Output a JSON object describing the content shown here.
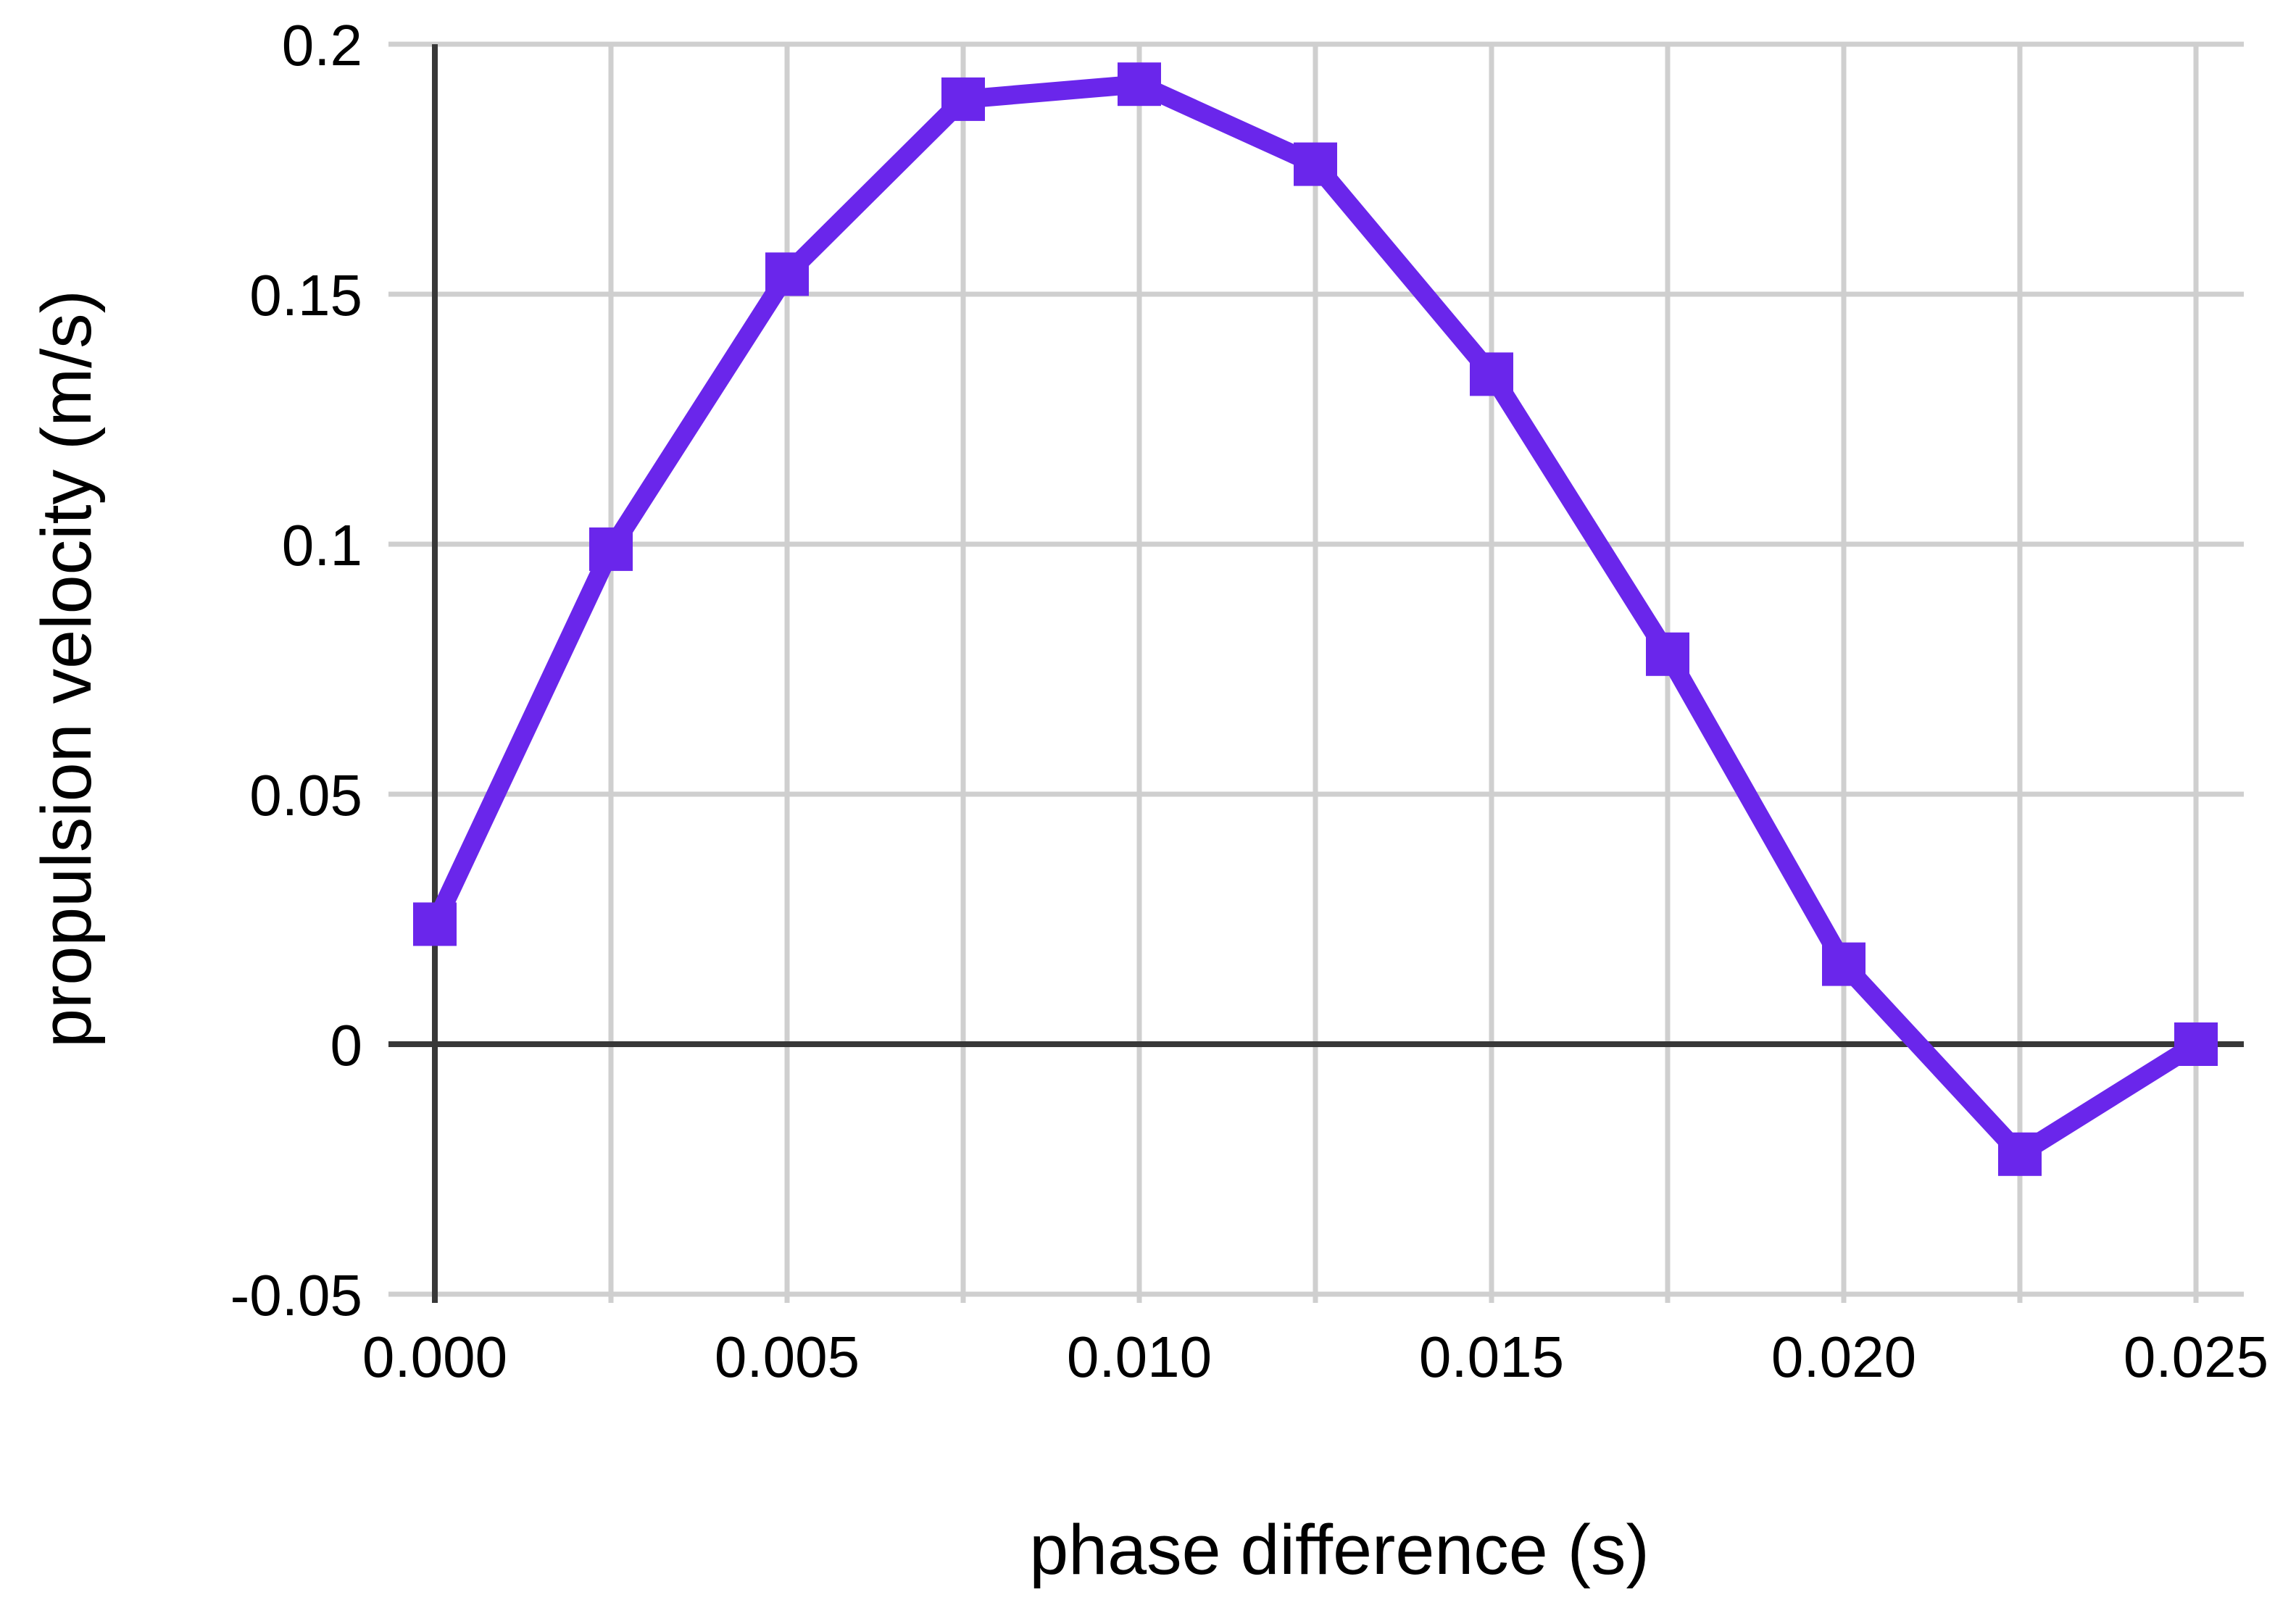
{
  "chart_data": {
    "type": "line",
    "title": "",
    "xlabel": "phase difference (s)",
    "ylabel": "propulsion velocity (m/s)",
    "series": [
      {
        "name": "propulsion velocity",
        "x": [
          0.0,
          0.0025,
          0.005,
          0.0075,
          0.01,
          0.0125,
          0.015,
          0.0175,
          0.02,
          0.0225,
          0.025
        ],
        "y": [
          0.024,
          0.099,
          0.154,
          0.189,
          0.192,
          0.176,
          0.134,
          0.078,
          0.016,
          -0.022,
          0.0
        ]
      }
    ],
    "x_ticks": {
      "values": [
        0.0,
        0.005,
        0.01,
        0.015,
        0.02,
        0.025
      ],
      "labels": [
        "0.000",
        "0.005",
        "0.010",
        "0.015",
        "0.020",
        "0.025"
      ]
    },
    "x_gridline_values": [
      0.0,
      0.0025,
      0.005,
      0.0075,
      0.01,
      0.0125,
      0.015,
      0.0175,
      0.02,
      0.0225,
      0.025
    ],
    "y_ticks": {
      "values": [
        -0.05,
        0.0,
        0.05,
        0.1,
        0.15,
        0.2
      ],
      "labels": [
        "-0.05",
        "0",
        "0.05",
        "0.1",
        "0.15",
        "0.2"
      ]
    },
    "xlim": [
      0.0,
      0.025
    ],
    "ylim": [
      -0.05,
      0.2
    ],
    "grid": true,
    "legend": "none",
    "marker": "square",
    "colors": {
      "series": "#6A26EB",
      "gridline": "#CFCFCF",
      "zero_axis": "#383838",
      "text": "#000000",
      "background": "#FFFFFF"
    }
  }
}
